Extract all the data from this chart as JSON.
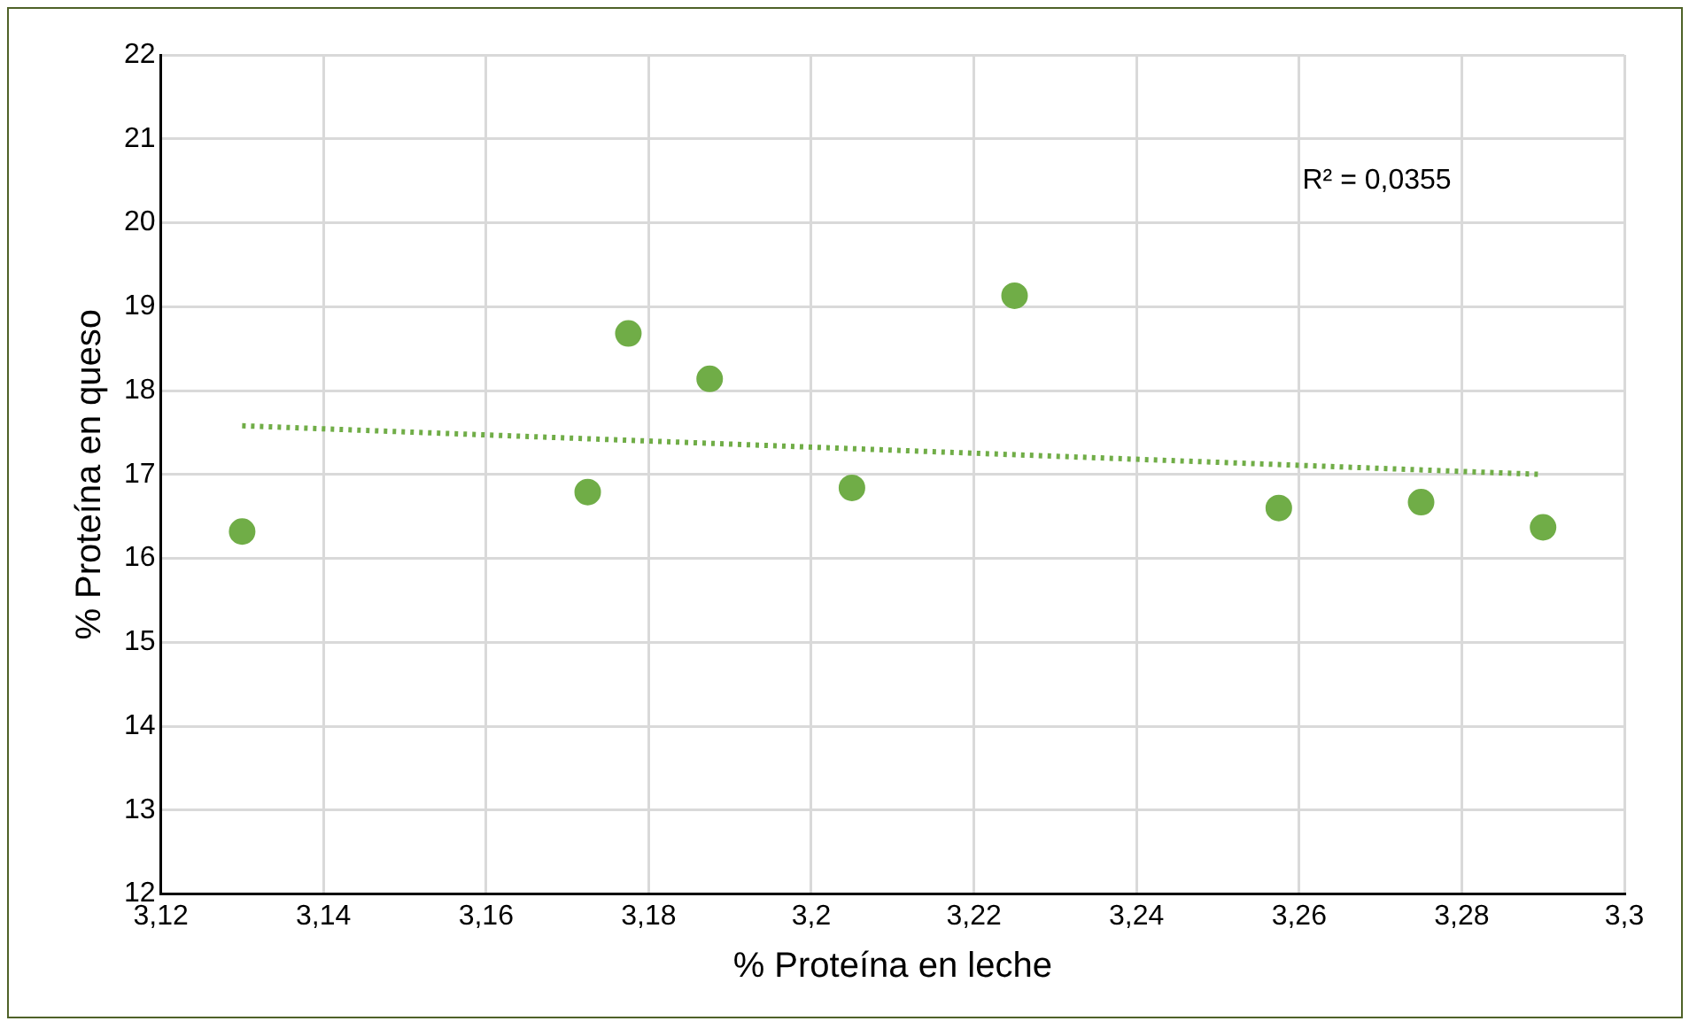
{
  "chart_data": {
    "type": "scatter",
    "xlabel": "% Proteína en leche",
    "ylabel": "% Proteína en queso",
    "annotations": [
      "R² = 0,0355"
    ],
    "xlim": [
      3.12,
      3.3
    ],
    "xticks": [
      {
        "value": 3.12,
        "label": "3,12"
      },
      {
        "value": 3.14,
        "label": "3,14"
      },
      {
        "value": 3.16,
        "label": "3,16"
      },
      {
        "value": 3.18,
        "label": "3,18"
      },
      {
        "value": 3.2,
        "label": "3,2"
      },
      {
        "value": 3.22,
        "label": "3,22"
      },
      {
        "value": 3.24,
        "label": "3,24"
      },
      {
        "value": 3.26,
        "label": "3,26"
      },
      {
        "value": 3.28,
        "label": "3,28"
      },
      {
        "value": 3.3,
        "label": "3,3"
      }
    ],
    "ylim": [
      12,
      22
    ],
    "yticks": [
      12,
      13,
      14,
      15,
      16,
      17,
      18,
      19,
      20,
      21,
      22
    ],
    "grid": true,
    "legend": false,
    "marker": "circle",
    "series": [
      {
        "color": "#70ad47",
        "x": [
          3.13,
          3.1725,
          3.1775,
          3.1875,
          3.205,
          3.225,
          3.2575,
          3.275,
          3.29
        ],
        "values": [
          16.32,
          16.79,
          18.68,
          18.14,
          16.84,
          19.13,
          16.6,
          16.67,
          16.37
        ]
      },
      {
        "type": "line",
        "color": "#70ad47",
        "line_style": "dotted",
        "marker": "none",
        "x": [
          3.13,
          3.29
        ],
        "values": [
          17.58,
          17.0
        ]
      }
    ]
  }
}
